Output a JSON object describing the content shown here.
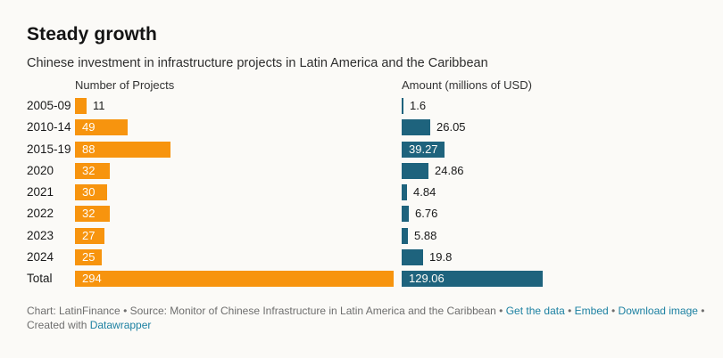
{
  "title": "Steady growth",
  "subtitle": "Chinese investment in infrastructure projects in Latin America and the Caribbean",
  "chart_data": {
    "type": "bar",
    "orientation": "horizontal",
    "layout": "two side-by-side bar columns (split bars), value labels at bar ends, no gridlines, no axes",
    "title": "Steady growth",
    "subtitle": "Chinese investment in infrastructure projects in Latin America and the Caribbean",
    "categories": [
      "2005-09",
      "2010-14",
      "2015-19",
      "2020",
      "2021",
      "2022",
      "2023",
      "2024",
      "Total"
    ],
    "series": [
      {
        "name": "Number of Projects",
        "color": "#F7940E",
        "values": [
          11,
          49,
          88,
          32,
          30,
          32,
          27,
          25,
          294
        ]
      },
      {
        "name": "Amount (millions of USD)",
        "color": "#1E637D",
        "values": [
          1.6,
          26.05,
          39.27,
          24.86,
          4.84,
          6.76,
          5.88,
          19.8,
          129.06
        ]
      }
    ],
    "notes": "Last row 'Total' is a summary bar; labels drawn inside bar in white when they fit, otherwise outside in dark text",
    "legend_position": "column headers above each bar group",
    "grid": false
  },
  "colors": {
    "background": "#FBFAF7",
    "projects_bar": "#F7940E",
    "amount_bar": "#1E637D",
    "text_dark": "#1a1a1a",
    "footer_gray": "#6E6E6E",
    "link_blue": "#1D81A2"
  },
  "footer": {
    "parts": [
      {
        "text": "Chart: LatinFinance",
        "link": false
      },
      {
        "text": " • ",
        "link": false
      },
      {
        "text": "Source: Monitor of Chinese Infrastructure in Latin America and the Caribbean",
        "link": false
      },
      {
        "text": " • ",
        "link": false
      },
      {
        "text": "Get the data",
        "link": true
      },
      {
        "text": " • ",
        "link": false
      },
      {
        "text": "Embed",
        "link": true
      },
      {
        "text": "  • ",
        "link": false
      },
      {
        "text": "Download image",
        "link": true
      },
      {
        "text": " • ",
        "link": false
      },
      {
        "text": "Created with ",
        "link": false
      },
      {
        "text": "Datawrapper",
        "link": true
      }
    ]
  }
}
